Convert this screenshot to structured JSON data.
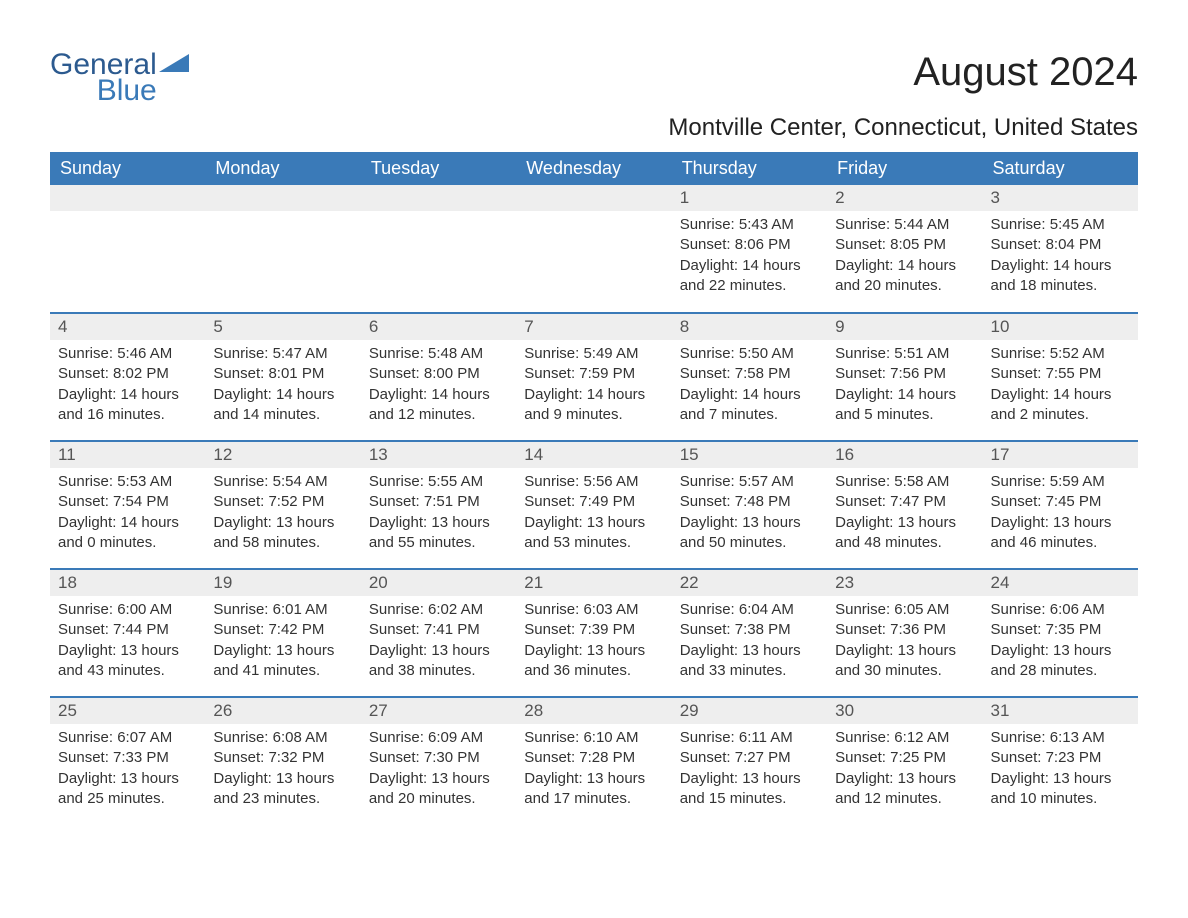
{
  "logo": {
    "part1": "General",
    "part2": "Blue"
  },
  "title": "August 2024",
  "location": "Montville Center, Connecticut, United States",
  "colors": {
    "header_bg": "#3a7ab8",
    "header_text": "#ffffff",
    "daynum_bg": "#eeeeee",
    "daynum_text": "#555555",
    "body_text": "#333333",
    "rule": "#3a7ab8",
    "logo_text": "#2c5a8f",
    "logo_blue": "#3a7ab8"
  },
  "typography": {
    "title_fontsize": 40,
    "location_fontsize": 24,
    "header_fontsize": 18,
    "daynum_fontsize": 17,
    "body_fontsize": 15,
    "font_family": "Arial"
  },
  "layout": {
    "columns": 7,
    "rows": 5,
    "week_start": "Sunday"
  },
  "day_headers": [
    "Sunday",
    "Monday",
    "Tuesday",
    "Wednesday",
    "Thursday",
    "Friday",
    "Saturday"
  ],
  "weeks": [
    [
      null,
      null,
      null,
      null,
      {
        "n": "1",
        "sunrise": "5:43 AM",
        "sunset": "8:06 PM",
        "dl_h": "14",
        "dl_m": "22"
      },
      {
        "n": "2",
        "sunrise": "5:44 AM",
        "sunset": "8:05 PM",
        "dl_h": "14",
        "dl_m": "20"
      },
      {
        "n": "3",
        "sunrise": "5:45 AM",
        "sunset": "8:04 PM",
        "dl_h": "14",
        "dl_m": "18"
      }
    ],
    [
      {
        "n": "4",
        "sunrise": "5:46 AM",
        "sunset": "8:02 PM",
        "dl_h": "14",
        "dl_m": "16"
      },
      {
        "n": "5",
        "sunrise": "5:47 AM",
        "sunset": "8:01 PM",
        "dl_h": "14",
        "dl_m": "14"
      },
      {
        "n": "6",
        "sunrise": "5:48 AM",
        "sunset": "8:00 PM",
        "dl_h": "14",
        "dl_m": "12"
      },
      {
        "n": "7",
        "sunrise": "5:49 AM",
        "sunset": "7:59 PM",
        "dl_h": "14",
        "dl_m": "9"
      },
      {
        "n": "8",
        "sunrise": "5:50 AM",
        "sunset": "7:58 PM",
        "dl_h": "14",
        "dl_m": "7"
      },
      {
        "n": "9",
        "sunrise": "5:51 AM",
        "sunset": "7:56 PM",
        "dl_h": "14",
        "dl_m": "5"
      },
      {
        "n": "10",
        "sunrise": "5:52 AM",
        "sunset": "7:55 PM",
        "dl_h": "14",
        "dl_m": "2"
      }
    ],
    [
      {
        "n": "11",
        "sunrise": "5:53 AM",
        "sunset": "7:54 PM",
        "dl_h": "14",
        "dl_m": "0"
      },
      {
        "n": "12",
        "sunrise": "5:54 AM",
        "sunset": "7:52 PM",
        "dl_h": "13",
        "dl_m": "58"
      },
      {
        "n": "13",
        "sunrise": "5:55 AM",
        "sunset": "7:51 PM",
        "dl_h": "13",
        "dl_m": "55"
      },
      {
        "n": "14",
        "sunrise": "5:56 AM",
        "sunset": "7:49 PM",
        "dl_h": "13",
        "dl_m": "53"
      },
      {
        "n": "15",
        "sunrise": "5:57 AM",
        "sunset": "7:48 PM",
        "dl_h": "13",
        "dl_m": "50"
      },
      {
        "n": "16",
        "sunrise": "5:58 AM",
        "sunset": "7:47 PM",
        "dl_h": "13",
        "dl_m": "48"
      },
      {
        "n": "17",
        "sunrise": "5:59 AM",
        "sunset": "7:45 PM",
        "dl_h": "13",
        "dl_m": "46"
      }
    ],
    [
      {
        "n": "18",
        "sunrise": "6:00 AM",
        "sunset": "7:44 PM",
        "dl_h": "13",
        "dl_m": "43"
      },
      {
        "n": "19",
        "sunrise": "6:01 AM",
        "sunset": "7:42 PM",
        "dl_h": "13",
        "dl_m": "41"
      },
      {
        "n": "20",
        "sunrise": "6:02 AM",
        "sunset": "7:41 PM",
        "dl_h": "13",
        "dl_m": "38"
      },
      {
        "n": "21",
        "sunrise": "6:03 AM",
        "sunset": "7:39 PM",
        "dl_h": "13",
        "dl_m": "36"
      },
      {
        "n": "22",
        "sunrise": "6:04 AM",
        "sunset": "7:38 PM",
        "dl_h": "13",
        "dl_m": "33"
      },
      {
        "n": "23",
        "sunrise": "6:05 AM",
        "sunset": "7:36 PM",
        "dl_h": "13",
        "dl_m": "30"
      },
      {
        "n": "24",
        "sunrise": "6:06 AM",
        "sunset": "7:35 PM",
        "dl_h": "13",
        "dl_m": "28"
      }
    ],
    [
      {
        "n": "25",
        "sunrise": "6:07 AM",
        "sunset": "7:33 PM",
        "dl_h": "13",
        "dl_m": "25"
      },
      {
        "n": "26",
        "sunrise": "6:08 AM",
        "sunset": "7:32 PM",
        "dl_h": "13",
        "dl_m": "23"
      },
      {
        "n": "27",
        "sunrise": "6:09 AM",
        "sunset": "7:30 PM",
        "dl_h": "13",
        "dl_m": "20"
      },
      {
        "n": "28",
        "sunrise": "6:10 AM",
        "sunset": "7:28 PM",
        "dl_h": "13",
        "dl_m": "17"
      },
      {
        "n": "29",
        "sunrise": "6:11 AM",
        "sunset": "7:27 PM",
        "dl_h": "13",
        "dl_m": "15"
      },
      {
        "n": "30",
        "sunrise": "6:12 AM",
        "sunset": "7:25 PM",
        "dl_h": "13",
        "dl_m": "12"
      },
      {
        "n": "31",
        "sunrise": "6:13 AM",
        "sunset": "7:23 PM",
        "dl_h": "13",
        "dl_m": "10"
      }
    ]
  ],
  "labels": {
    "sunrise": "Sunrise: ",
    "sunset": "Sunset: ",
    "daylight_prefix": "Daylight: ",
    "hours_word": " hours",
    "and_word": "and ",
    "minutes_suffix": " minutes."
  }
}
